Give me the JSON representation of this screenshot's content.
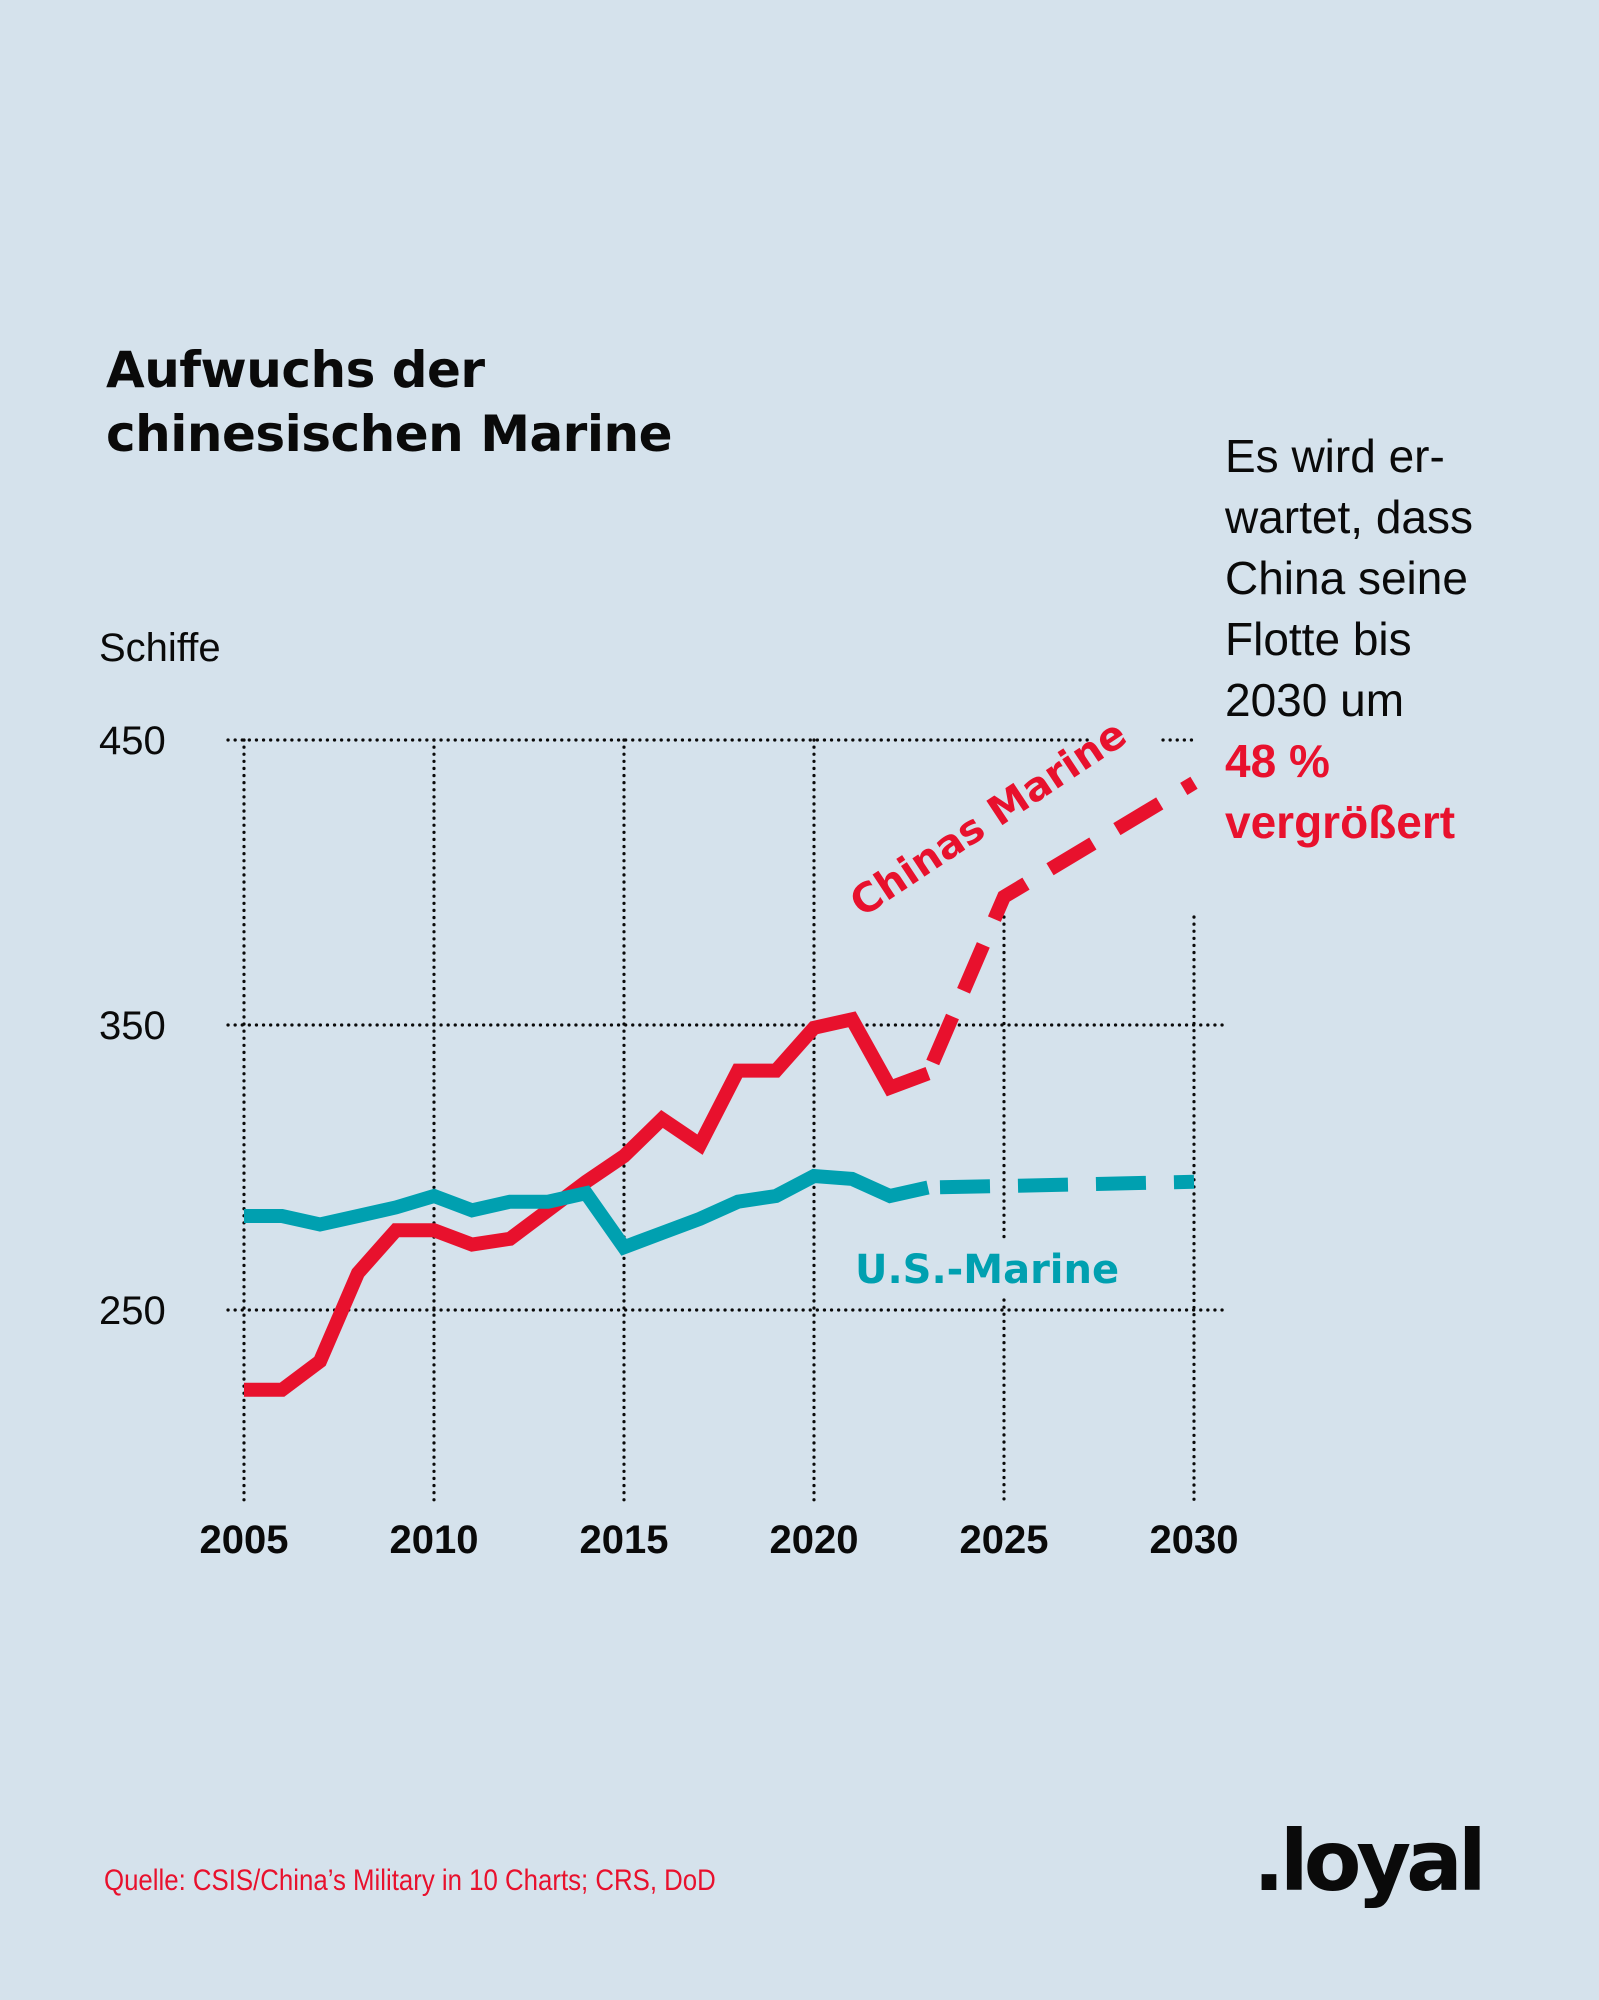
{
  "title": {
    "line1": "Aufwuchs der",
    "line2": "chinesischen Marine"
  },
  "annotation": {
    "lines": [
      "Es wird er-",
      "wartet, dass",
      "China seine",
      "Flotte bis",
      "2030 um"
    ],
    "highlight_lines": [
      "48 %",
      "vergrößert"
    ]
  },
  "source": "Quelle: CSIS/China’s Military in 10 Charts; CRS, DoD",
  "logo": ".loyal",
  "colors": {
    "background": "#d5e2ec",
    "china": "#e8112d",
    "us": "#00a0b0",
    "text": "#0a0a0a"
  },
  "chart_data": {
    "type": "line",
    "title": "Aufwuchs der chinesischen Marine",
    "xlabel": "",
    "ylabel": "Schiffe",
    "xlim": [
      2005,
      2030
    ],
    "ylim": [
      200,
      450
    ],
    "x_ticks": [
      2005,
      2010,
      2015,
      2020,
      2025,
      2030
    ],
    "y_ticks": [
      250,
      350,
      450
    ],
    "grid": "dotted",
    "series": [
      {
        "name": "Chinas Marine",
        "color": "#e8112d",
        "x": [
          2005,
          2006,
          2007,
          2008,
          2009,
          2010,
          2011,
          2012,
          2013,
          2014,
          2015,
          2016,
          2017,
          2018,
          2019,
          2020,
          2021,
          2022,
          2023
        ],
        "values": [
          222,
          222,
          232,
          263,
          278,
          278,
          273,
          275,
          285,
          295,
          304,
          317,
          308,
          334,
          334,
          349,
          352,
          328,
          333
        ],
        "projection": {
          "x": [
            2023,
            2025,
            2030
          ],
          "values": [
            333,
            395,
            435
          ],
          "style": "dashed"
        }
      },
      {
        "name": "U.S.-Marine",
        "color": "#00a0b0",
        "x": [
          2005,
          2006,
          2007,
          2008,
          2009,
          2010,
          2011,
          2012,
          2013,
          2014,
          2015,
          2016,
          2017,
          2018,
          2019,
          2020,
          2021,
          2022,
          2023
        ],
        "values": [
          283,
          283,
          280,
          283,
          286,
          290,
          285,
          288,
          288,
          291,
          272,
          277,
          282,
          288,
          290,
          297,
          296,
          290,
          293
        ],
        "projection": {
          "x": [
            2023,
            2025,
            2030
          ],
          "values": [
            293,
            293.5,
            295
          ],
          "style": "dashed"
        }
      }
    ],
    "annotations": [
      "Es wird erwartet, dass China seine Flotte bis 2030 um 48 % vergrößert"
    ]
  }
}
